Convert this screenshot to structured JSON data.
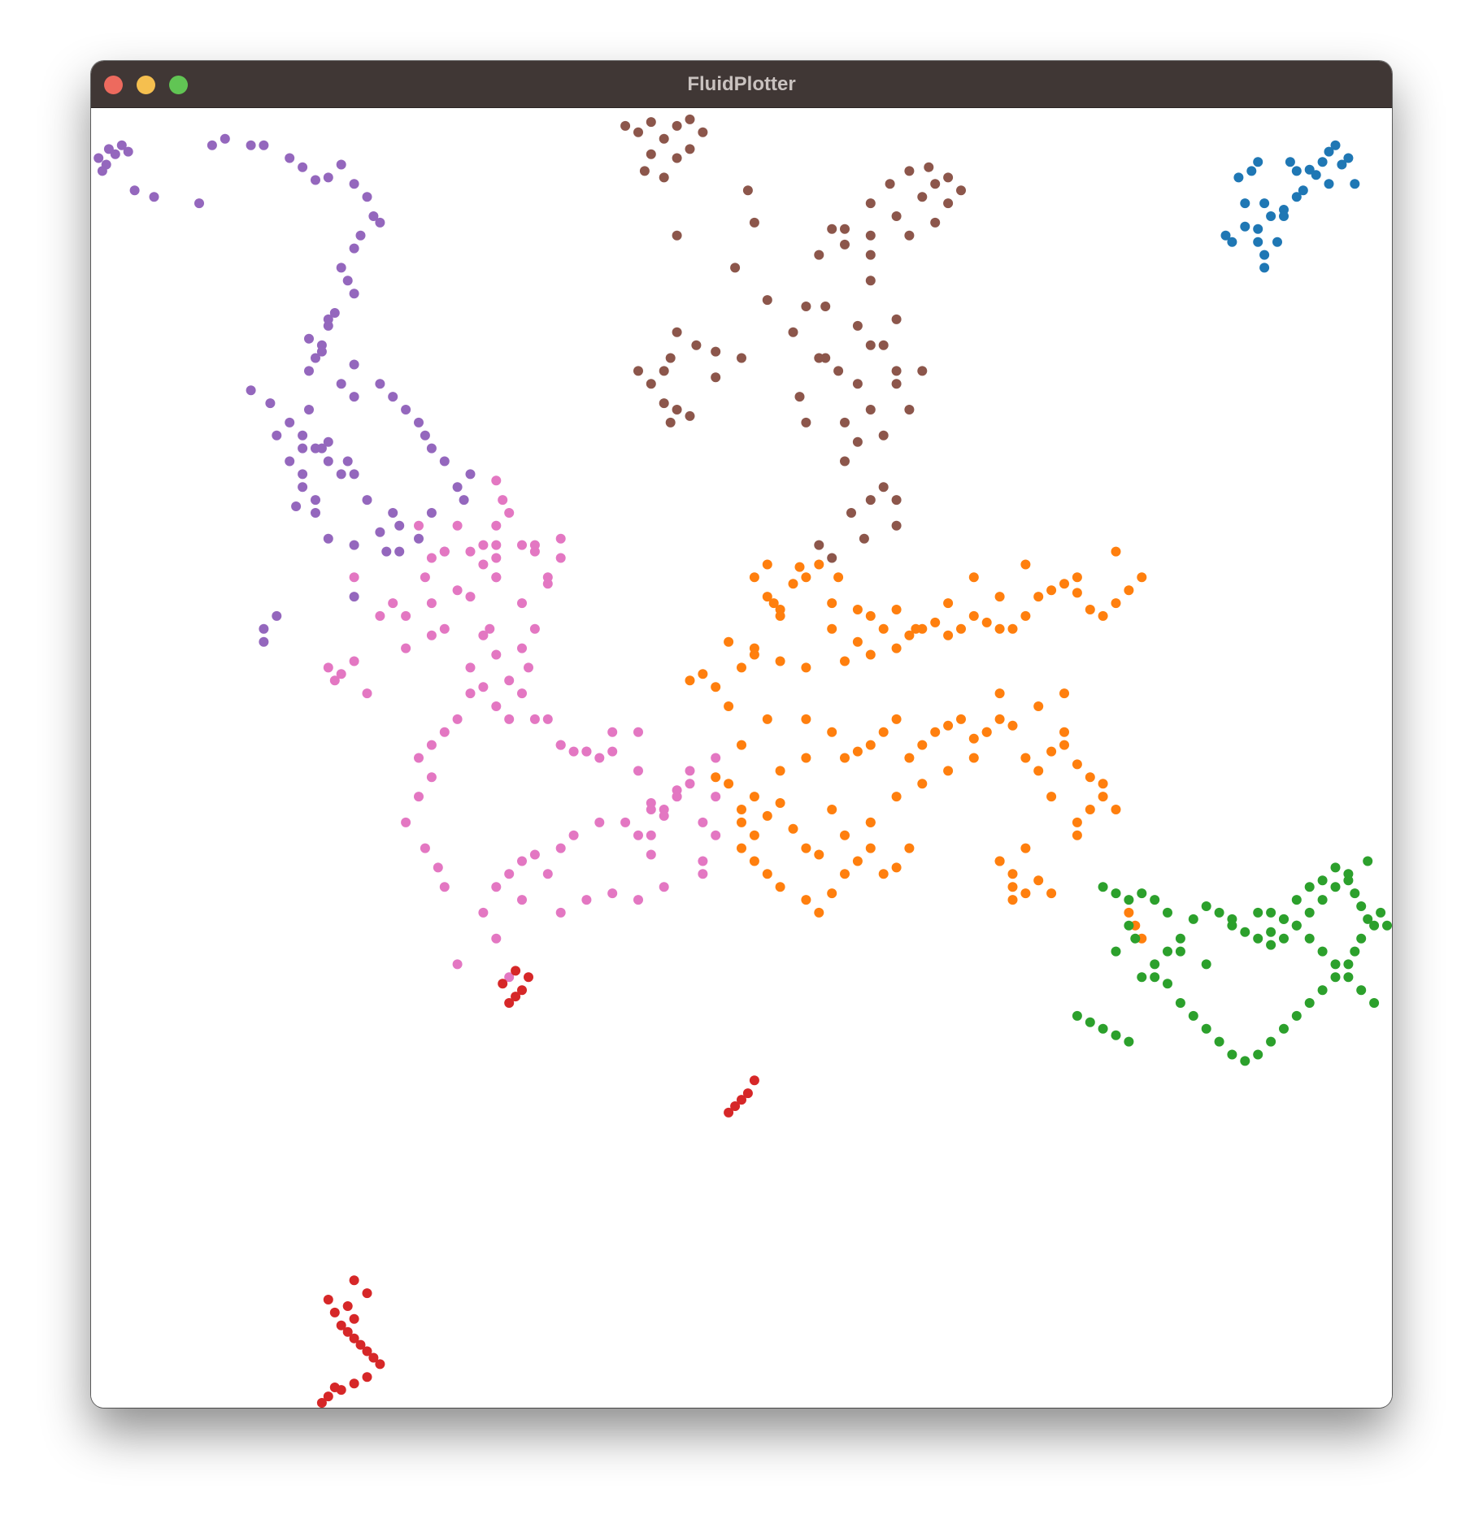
{
  "window": {
    "title": "FluidPlotter",
    "controls": [
      "close-button",
      "minimize-button",
      "zoom-button"
    ]
  },
  "chart_data": {
    "type": "scatter",
    "title": "",
    "xlabel": "",
    "ylabel": "",
    "xlim": [
      0,
      1
    ],
    "ylim": [
      0,
      1
    ],
    "grid": false,
    "legend": "none",
    "series": [
      {
        "color": "#1f77b4",
        "x": [
          0.885,
          0.895,
          0.9,
          0.89,
          0.905,
          0.92,
          0.935,
          0.93,
          0.925,
          0.94,
          0.95,
          0.955,
          0.96,
          0.965,
          0.97,
          0.975,
          0.955,
          0.945,
          0.93,
          0.92,
          0.91,
          0.9,
          0.9,
          0.905,
          0.905,
          0.915,
          0.88,
          0.89,
          0.875
        ],
        "y": [
          0.95,
          0.955,
          0.962,
          0.93,
          0.93,
          0.925,
          0.94,
          0.955,
          0.962,
          0.956,
          0.962,
          0.97,
          0.975,
          0.96,
          0.965,
          0.945,
          0.945,
          0.952,
          0.935,
          0.92,
          0.92,
          0.91,
          0.9,
          0.89,
          0.88,
          0.9,
          0.9,
          0.912,
          0.905
        ]
      },
      {
        "color": "#8c564b",
        "x": [
          0.41,
          0.42,
          0.43,
          0.44,
          0.45,
          0.46,
          0.47,
          0.46,
          0.43,
          0.425,
          0.44,
          0.45,
          0.505,
          0.51,
          0.45,
          0.495,
          0.52,
          0.565,
          0.6,
          0.6,
          0.58,
          0.57,
          0.6,
          0.62,
          0.63,
          0.65,
          0.64,
          0.66,
          0.65,
          0.67,
          0.66,
          0.645,
          0.63,
          0.615,
          0.6,
          0.58,
          0.56,
          0.55,
          0.54,
          0.565,
          0.59,
          0.6,
          0.62,
          0.6,
          0.58,
          0.59,
          0.61,
          0.63,
          0.62,
          0.64,
          0.61,
          0.62,
          0.59,
          0.575,
          0.56,
          0.545,
          0.55,
          0.58,
          0.62,
          0.585,
          0.6,
          0.61,
          0.62,
          0.595,
          0.57,
          0.56,
          0.445,
          0.45,
          0.44,
          0.43,
          0.42,
          0.465,
          0.48,
          0.5,
          0.48,
          0.445,
          0.44,
          0.45,
          0.46
        ],
        "y": [
          0.99,
          0.985,
          0.993,
          0.98,
          0.99,
          0.995,
          0.985,
          0.972,
          0.968,
          0.955,
          0.95,
          0.965,
          0.94,
          0.915,
          0.905,
          0.88,
          0.855,
          0.85,
          0.87,
          0.89,
          0.898,
          0.91,
          0.905,
          0.92,
          0.905,
          0.915,
          0.935,
          0.93,
          0.945,
          0.94,
          0.95,
          0.958,
          0.955,
          0.945,
          0.93,
          0.91,
          0.89,
          0.85,
          0.83,
          0.81,
          0.79,
          0.82,
          0.8,
          0.77,
          0.76,
          0.745,
          0.75,
          0.77,
          0.79,
          0.8,
          0.82,
          0.84,
          0.835,
          0.8,
          0.81,
          0.78,
          0.76,
          0.73,
          0.7,
          0.69,
          0.7,
          0.71,
          0.68,
          0.67,
          0.655,
          0.665,
          0.81,
          0.83,
          0.8,
          0.79,
          0.8,
          0.82,
          0.815,
          0.81,
          0.795,
          0.76,
          0.775,
          0.77,
          0.765
        ]
      },
      {
        "color": "#9467bd",
        "x": [
          0.002,
          0.01,
          0.015,
          0.02,
          0.025,
          0.008,
          0.005,
          0.03,
          0.045,
          0.08,
          0.09,
          0.1,
          0.12,
          0.13,
          0.15,
          0.16,
          0.17,
          0.18,
          0.19,
          0.2,
          0.21,
          0.215,
          0.22,
          0.205,
          0.2,
          0.19,
          0.195,
          0.2,
          0.185,
          0.18,
          0.175,
          0.17,
          0.165,
          0.19,
          0.2,
          0.18,
          0.15,
          0.16,
          0.16,
          0.17,
          0.155,
          0.12,
          0.135,
          0.165,
          0.2,
          0.22,
          0.23,
          0.24,
          0.25,
          0.255,
          0.26,
          0.27,
          0.28,
          0.285,
          0.29,
          0.27,
          0.25,
          0.23,
          0.21,
          0.2,
          0.195,
          0.18,
          0.17,
          0.19,
          0.16,
          0.15,
          0.14,
          0.17,
          0.18,
          0.2,
          0.22,
          0.235,
          0.26,
          0.175,
          0.18,
          0.16,
          0.175,
          0.165,
          0.13,
          0.13,
          0.14,
          0.2,
          0.225,
          0.235
        ],
        "y": [
          0.965,
          0.972,
          0.968,
          0.975,
          0.97,
          0.96,
          0.955,
          0.94,
          0.935,
          0.93,
          0.975,
          0.98,
          0.975,
          0.975,
          0.965,
          0.958,
          0.948,
          0.95,
          0.96,
          0.945,
          0.935,
          0.92,
          0.915,
          0.905,
          0.895,
          0.88,
          0.87,
          0.86,
          0.845,
          0.835,
          0.82,
          0.81,
          0.8,
          0.79,
          0.805,
          0.84,
          0.76,
          0.74,
          0.72,
          0.7,
          0.695,
          0.785,
          0.775,
          0.77,
          0.78,
          0.79,
          0.78,
          0.77,
          0.76,
          0.75,
          0.74,
          0.73,
          0.71,
          0.7,
          0.72,
          0.66,
          0.67,
          0.69,
          0.7,
          0.72,
          0.73,
          0.745,
          0.74,
          0.72,
          0.71,
          0.73,
          0.75,
          0.69,
          0.67,
          0.665,
          0.675,
          0.68,
          0.69,
          0.74,
          0.73,
          0.75,
          0.815,
          0.825,
          0.6,
          0.59,
          0.61,
          0.625,
          0.66,
          0.66
        ]
      },
      {
        "color": "#e377c2",
        "x": [
          0.31,
          0.315,
          0.32,
          0.31,
          0.31,
          0.28,
          0.25,
          0.26,
          0.255,
          0.27,
          0.29,
          0.3,
          0.31,
          0.33,
          0.34,
          0.35,
          0.35,
          0.36,
          0.34,
          0.36,
          0.33,
          0.31,
          0.28,
          0.26,
          0.24,
          0.23,
          0.2,
          0.22,
          0.24,
          0.26,
          0.27,
          0.29,
          0.3,
          0.31,
          0.32,
          0.34,
          0.36,
          0.37,
          0.38,
          0.39,
          0.4,
          0.42,
          0.44,
          0.45,
          0.47,
          0.43,
          0.41,
          0.39,
          0.37,
          0.36,
          0.34,
          0.33,
          0.32,
          0.31,
          0.33,
          0.35,
          0.36,
          0.38,
          0.4,
          0.42,
          0.44,
          0.43,
          0.42,
          0.43,
          0.44,
          0.45,
          0.46,
          0.48,
          0.48,
          0.42,
          0.4,
          0.38,
          0.36,
          0.35,
          0.33,
          0.32,
          0.31,
          0.3,
          0.305,
          0.29,
          0.3,
          0.31,
          0.33,
          0.335,
          0.34,
          0.29,
          0.28,
          0.27,
          0.26,
          0.25,
          0.26,
          0.25,
          0.24,
          0.255,
          0.265,
          0.27,
          0.3,
          0.31,
          0.28,
          0.32,
          0.18,
          0.185,
          0.19,
          0.2,
          0.21,
          0.43,
          0.45,
          0.46,
          0.47,
          0.47,
          0.48
        ],
        "y": [
          0.715,
          0.7,
          0.69,
          0.68,
          0.655,
          0.68,
          0.68,
          0.655,
          0.64,
          0.66,
          0.66,
          0.665,
          0.665,
          0.665,
          0.66,
          0.64,
          0.635,
          0.655,
          0.665,
          0.67,
          0.62,
          0.64,
          0.63,
          0.62,
          0.61,
          0.62,
          0.64,
          0.61,
          0.585,
          0.595,
          0.6,
          0.57,
          0.555,
          0.54,
          0.53,
          0.53,
          0.51,
          0.505,
          0.505,
          0.5,
          0.505,
          0.49,
          0.46,
          0.47,
          0.45,
          0.44,
          0.45,
          0.45,
          0.44,
          0.43,
          0.425,
          0.42,
          0.41,
          0.4,
          0.39,
          0.41,
          0.38,
          0.39,
          0.395,
          0.39,
          0.4,
          0.425,
          0.44,
          0.46,
          0.455,
          0.47,
          0.48,
          0.47,
          0.5,
          0.52,
          0.52,
          0.505,
          0.51,
          0.53,
          0.55,
          0.56,
          0.58,
          0.595,
          0.6,
          0.625,
          0.65,
          0.64,
          0.585,
          0.57,
          0.6,
          0.55,
          0.53,
          0.52,
          0.51,
          0.5,
          0.485,
          0.47,
          0.45,
          0.43,
          0.415,
          0.4,
          0.38,
          0.36,
          0.34,
          0.33,
          0.57,
          0.56,
          0.565,
          0.575,
          0.55,
          0.465,
          0.475,
          0.49,
          0.42,
          0.41,
          0.44
        ]
      },
      {
        "color": "#ff7f0e",
        "x": [
          0.51,
          0.52,
          0.525,
          0.53,
          0.54,
          0.545,
          0.55,
          0.56,
          0.57,
          0.575,
          0.59,
          0.6,
          0.62,
          0.635,
          0.65,
          0.66,
          0.67,
          0.68,
          0.69,
          0.7,
          0.71,
          0.72,
          0.73,
          0.74,
          0.75,
          0.76,
          0.77,
          0.78,
          0.79,
          0.8,
          0.81,
          0.79,
          0.76,
          0.72,
          0.7,
          0.68,
          0.66,
          0.64,
          0.63,
          0.62,
          0.61,
          0.6,
          0.59,
          0.58,
          0.57,
          0.55,
          0.53,
          0.51,
          0.49,
          0.48,
          0.47,
          0.46,
          0.49,
          0.5,
          0.52,
          0.55,
          0.57,
          0.58,
          0.59,
          0.6,
          0.61,
          0.62,
          0.63,
          0.64,
          0.65,
          0.66,
          0.67,
          0.68,
          0.69,
          0.7,
          0.71,
          0.72,
          0.73,
          0.74,
          0.75,
          0.76,
          0.77,
          0.78,
          0.79,
          0.75,
          0.73,
          0.7,
          0.69,
          0.68,
          0.66,
          0.64,
          0.62,
          0.6,
          0.58,
          0.56,
          0.55,
          0.54,
          0.53,
          0.52,
          0.51,
          0.5,
          0.51,
          0.52,
          0.53,
          0.55,
          0.56,
          0.57,
          0.58,
          0.59,
          0.6,
          0.61,
          0.62,
          0.63,
          0.6,
          0.57,
          0.55,
          0.53,
          0.51,
          0.5,
          0.48,
          0.49,
          0.5,
          0.71,
          0.72,
          0.71,
          0.7,
          0.73,
          0.74,
          0.8,
          0.805,
          0.81,
          0.7,
          0.71,
          0.72,
          0.76,
          0.74,
          0.76,
          0.77,
          0.78,
          0.75,
          0.5,
          0.51,
          0.52,
          0.53
        ],
        "y": [
          0.64,
          0.625,
          0.62,
          0.615,
          0.635,
          0.648,
          0.64,
          0.65,
          0.62,
          0.64,
          0.615,
          0.61,
          0.615,
          0.6,
          0.605,
          0.595,
          0.6,
          0.61,
          0.605,
          0.6,
          0.6,
          0.61,
          0.625,
          0.63,
          0.635,
          0.64,
          0.615,
          0.61,
          0.62,
          0.63,
          0.64,
          0.66,
          0.628,
          0.65,
          0.625,
          0.64,
          0.62,
          0.6,
          0.595,
          0.585,
          0.6,
          0.58,
          0.59,
          0.575,
          0.6,
          0.57,
          0.575,
          0.58,
          0.59,
          0.555,
          0.565,
          0.56,
          0.54,
          0.51,
          0.53,
          0.53,
          0.52,
          0.5,
          0.505,
          0.51,
          0.52,
          0.53,
          0.5,
          0.51,
          0.52,
          0.525,
          0.53,
          0.515,
          0.52,
          0.53,
          0.525,
          0.5,
          0.49,
          0.505,
          0.51,
          0.495,
          0.485,
          0.47,
          0.46,
          0.52,
          0.54,
          0.55,
          0.52,
          0.5,
          0.49,
          0.48,
          0.47,
          0.45,
          0.44,
          0.425,
          0.43,
          0.445,
          0.465,
          0.455,
          0.44,
          0.43,
          0.42,
          0.41,
          0.4,
          0.39,
          0.38,
          0.395,
          0.41,
          0.42,
          0.43,
          0.41,
          0.415,
          0.43,
          0.45,
          0.46,
          0.5,
          0.49,
          0.47,
          0.46,
          0.485,
          0.48,
          0.45,
          0.39,
          0.395,
          0.4,
          0.42,
          0.405,
          0.395,
          0.38,
          0.37,
          0.36,
          0.42,
          0.41,
          0.43,
          0.44,
          0.47,
          0.45,
          0.46,
          0.48,
          0.55,
          0.57,
          0.585,
          0.65,
          0.61
        ]
      },
      {
        "color": "#2ca02c",
        "x": [
          0.78,
          0.79,
          0.8,
          0.81,
          0.82,
          0.83,
          0.8,
          0.805,
          0.79,
          0.82,
          0.83,
          0.84,
          0.85,
          0.86,
          0.87,
          0.88,
          0.89,
          0.9,
          0.91,
          0.92,
          0.93,
          0.94,
          0.95,
          0.96,
          0.97,
          0.975,
          0.98,
          0.99,
          0.995,
          1.0,
          0.985,
          0.98,
          0.975,
          0.97,
          0.96,
          0.95,
          0.94,
          0.93,
          0.92,
          0.91,
          0.9,
          0.89,
          0.88,
          0.87,
          0.86,
          0.85,
          0.84,
          0.83,
          0.82,
          0.81,
          0.76,
          0.77,
          0.78,
          0.79,
          0.8,
          0.84,
          0.86,
          0.88,
          0.9,
          0.91,
          0.92,
          0.93,
          0.94,
          0.95,
          0.96,
          0.97,
          0.98,
          0.99,
          0.985,
          0.97,
          0.96,
          0.95,
          0.94,
          0.93,
          0.92,
          0.91
        ],
        "y": [
          0.4,
          0.395,
          0.39,
          0.395,
          0.39,
          0.38,
          0.37,
          0.36,
          0.35,
          0.33,
          0.325,
          0.31,
          0.3,
          0.29,
          0.28,
          0.27,
          0.265,
          0.27,
          0.28,
          0.29,
          0.3,
          0.31,
          0.32,
          0.33,
          0.34,
          0.35,
          0.36,
          0.37,
          0.38,
          0.37,
          0.375,
          0.385,
          0.395,
          0.405,
          0.415,
          0.405,
          0.4,
          0.39,
          0.375,
          0.365,
          0.36,
          0.365,
          0.375,
          0.38,
          0.385,
          0.375,
          0.36,
          0.35,
          0.34,
          0.33,
          0.3,
          0.295,
          0.29,
          0.285,
          0.28,
          0.35,
          0.34,
          0.37,
          0.38,
          0.38,
          0.375,
          0.37,
          0.36,
          0.35,
          0.34,
          0.33,
          0.32,
          0.31,
          0.42,
          0.41,
          0.4,
          0.39,
          0.38,
          0.37,
          0.36,
          0.355
        ]
      },
      {
        "color": "#d62728",
        "x": [
          0.32,
          0.325,
          0.33,
          0.335,
          0.325,
          0.315,
          0.49,
          0.495,
          0.5,
          0.505,
          0.51,
          0.2,
          0.18,
          0.185,
          0.19,
          0.195,
          0.2,
          0.205,
          0.21,
          0.215,
          0.22,
          0.21,
          0.2,
          0.19,
          0.18,
          0.175,
          0.185,
          0.2,
          0.195,
          0.21
        ],
        "y": [
          0.31,
          0.315,
          0.32,
          0.33,
          0.335,
          0.325,
          0.225,
          0.23,
          0.235,
          0.24,
          0.25,
          0.095,
          0.08,
          0.07,
          0.06,
          0.055,
          0.05,
          0.045,
          0.04,
          0.035,
          0.03,
          0.02,
          0.015,
          0.01,
          0.005,
          0.0,
          0.012,
          0.065,
          0.075,
          0.085
        ]
      }
    ]
  }
}
